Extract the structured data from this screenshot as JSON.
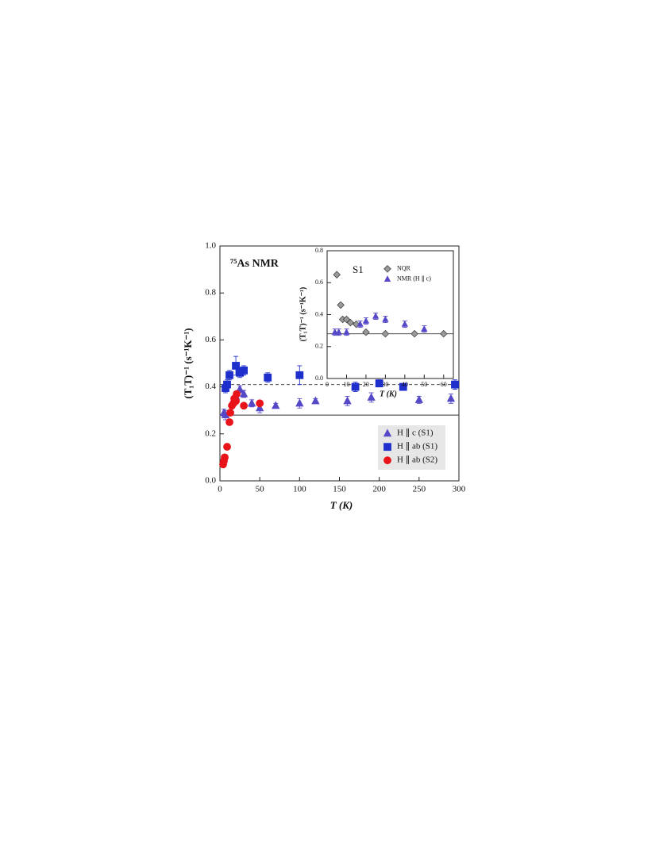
{
  "chart_data": [
    {
      "type": "scatter",
      "annotation": "⁷⁵As NMR",
      "x_label": "T (K)",
      "y_label": "(T₁T)⁻¹ (s⁻¹K⁻¹)",
      "xlim": [
        0,
        300
      ],
      "xticks": [
        0,
        50,
        100,
        150,
        200,
        250,
        300
      ],
      "ylim": [
        0,
        1
      ],
      "yticks": [
        {
          "value": 0,
          "label": "0.0"
        },
        0.2,
        0.4,
        0.6,
        0.8,
        {
          "value": 1,
          "label": "1.0"
        }
      ],
      "hlines": [
        {
          "value": 0.41,
          "style": "dashed"
        },
        {
          "value": 0.28,
          "style": "solid"
        }
      ],
      "legend": "lower right",
      "series": [
        {
          "name": "H ∥ c (S1)",
          "marker": "triangle",
          "color": "#5548c6",
          "x": [
            5,
            7,
            20,
            25,
            30,
            40,
            50,
            70,
            100,
            120,
            160,
            190,
            250,
            290
          ],
          "values": [
            0.29,
            0.28,
            0.36,
            0.39,
            0.37,
            0.33,
            0.31,
            0.32,
            0.33,
            0.34,
            0.34,
            0.355,
            0.345,
            0.35
          ],
          "errors": [
            0.015,
            0.02,
            0.015,
            0.015,
            0.015,
            0.015,
            0.02,
            0.01,
            0.02,
            0.01,
            0.02,
            0.02,
            0.015,
            0.02
          ]
        },
        {
          "name": "H ∥ ab (S1)",
          "marker": "square",
          "color": "#1f2fcc",
          "x": [
            7,
            9,
            12,
            20,
            25,
            30,
            60,
            100,
            170,
            200,
            230,
            295
          ],
          "values": [
            0.395,
            0.41,
            0.45,
            0.49,
            0.46,
            0.47,
            0.44,
            0.45,
            0.4,
            0.415,
            0.4,
            0.41
          ],
          "errors": [
            0.02,
            0.02,
            0.02,
            0.04,
            0.02,
            0.02,
            0.02,
            0.04,
            0.02,
            0.015,
            0.015,
            0.02
          ]
        },
        {
          "name": "H ∥ ab (S2)",
          "marker": "circle",
          "color": "#e8141a",
          "x": [
            4,
            5,
            6,
            9,
            12,
            13,
            15,
            17,
            18,
            20,
            21,
            30,
            50
          ],
          "values": [
            0.07,
            0.085,
            0.1,
            0.145,
            0.25,
            0.29,
            0.32,
            0.33,
            0.35,
            0.34,
            0.37,
            0.32,
            0.33
          ]
        }
      ]
    },
    {
      "type": "scatter",
      "annotation": "S1",
      "x_label": "T (K)",
      "y_label": "(T₁T)⁻¹ (s⁻¹K⁻¹)",
      "xlim": [
        0,
        65
      ],
      "xticks": [
        0,
        10,
        20,
        30,
        40,
        50,
        60
      ],
      "ylim": [
        0,
        0.8
      ],
      "yticks": [
        {
          "value": 0,
          "label": "0.0"
        },
        0.2,
        0.4,
        0.6,
        0.8
      ],
      "hlines": [
        {
          "value": 0.28,
          "style": "solid"
        }
      ],
      "legend": "upper right",
      "series": [
        {
          "name": "NQR",
          "marker": "diamond",
          "color": "#9a9a9a",
          "x": [
            5,
            7,
            8,
            10,
            12,
            15,
            20,
            30,
            45,
            60
          ],
          "values": [
            0.65,
            0.46,
            0.37,
            0.37,
            0.35,
            0.34,
            0.29,
            0.28,
            0.28,
            0.28
          ]
        },
        {
          "name": "NMR (H ∥ c)",
          "marker": "triangle",
          "color": "#5548c6",
          "x": [
            4,
            6,
            10,
            17,
            20,
            25,
            30,
            40,
            50
          ],
          "values": [
            0.29,
            0.29,
            0.29,
            0.34,
            0.36,
            0.39,
            0.37,
            0.34,
            0.31
          ],
          "errors": [
            0.02,
            0.02,
            0.02,
            0.02,
            0.02,
            0.02,
            0.02,
            0.02,
            0.02
          ]
        }
      ]
    }
  ]
}
